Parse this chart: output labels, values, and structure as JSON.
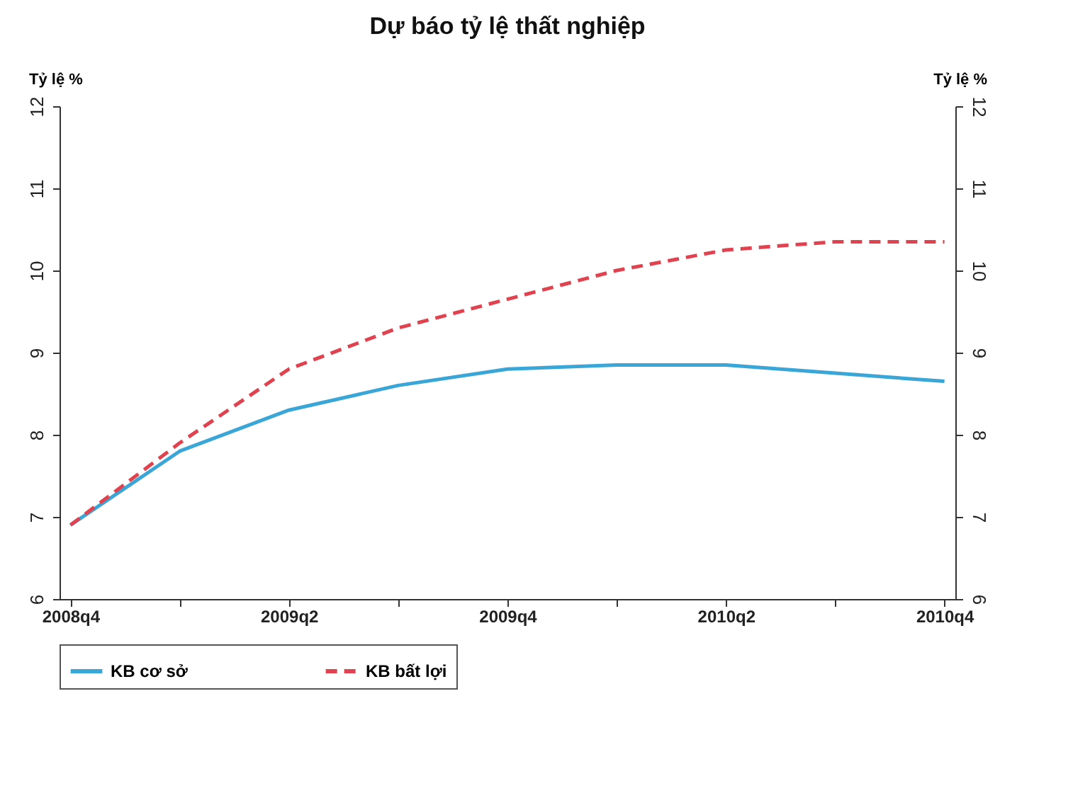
{
  "chart_data": {
    "type": "line",
    "title": "Dự báo tỷ lệ thất nghiệp",
    "ylabel": "Tỷ lệ %",
    "y2label": "Tỷ lệ %",
    "categories": [
      "2008q4",
      null,
      "2009q2",
      null,
      "2009q4",
      null,
      "2010q2",
      null,
      "2010q4"
    ],
    "series": [
      {
        "name": "KB cơ sở",
        "color": "#3aa6d8",
        "line_style": "solid",
        "values": [
          6.9,
          7.8,
          8.3,
          8.6,
          8.8,
          8.85,
          8.85,
          8.75,
          8.65
        ]
      },
      {
        "name": "KB bất lợi",
        "color": "#e0434f",
        "line_style": "dashed",
        "values": [
          6.9,
          7.9,
          8.8,
          9.3,
          9.65,
          10.0,
          10.25,
          10.35,
          10.35
        ]
      }
    ],
    "ylim": [
      6,
      12
    ],
    "yticks": [
      6,
      7,
      8,
      9,
      10,
      11,
      12
    ],
    "y2lim": [
      6,
      12
    ],
    "y2ticks": [
      6,
      7,
      8,
      9,
      10,
      11,
      12
    ],
    "grid": false,
    "legend": "bottom",
    "marker": "none"
  }
}
